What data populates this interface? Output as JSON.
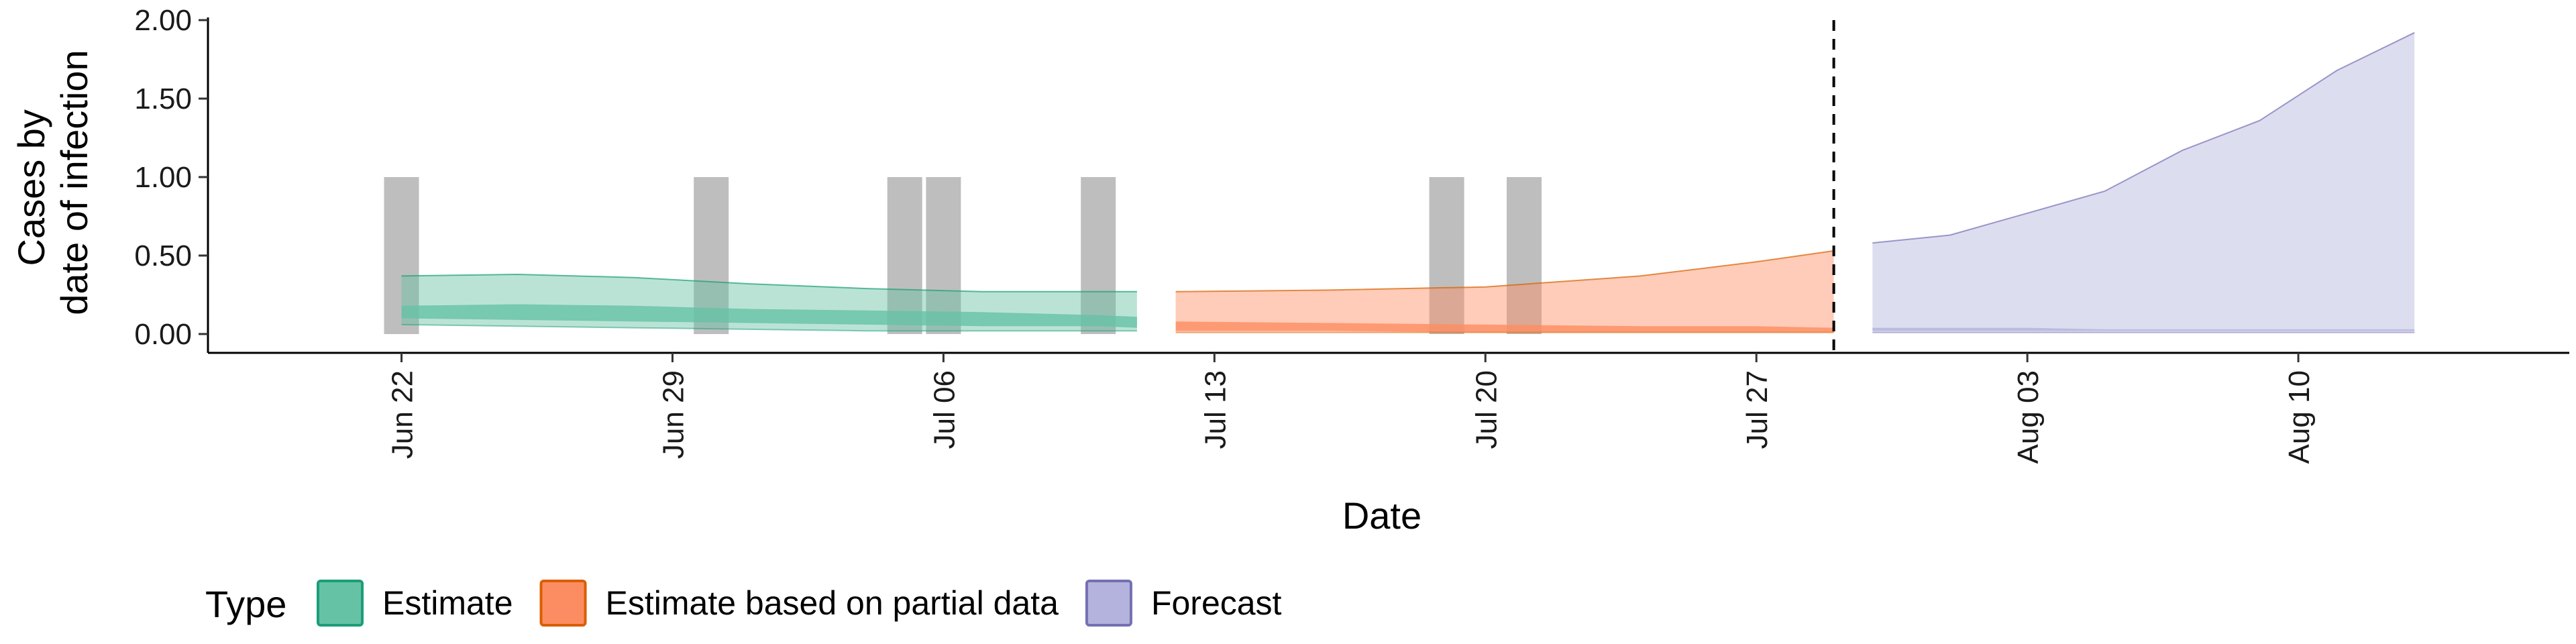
{
  "chart_data": {
    "type": "area",
    "xlabel": "Date",
    "ylabel_lines": [
      "Cases by",
      "date of infection"
    ],
    "ylim": [
      -0.12,
      2.0
    ],
    "yticks": [
      0,
      0.5,
      1,
      1.5,
      2
    ],
    "ytick_labels": [
      "0.00",
      "0.50",
      "1.00",
      "1.50",
      "2.00"
    ],
    "xlim": [
      "2020-06-17",
      "2020-08-17"
    ],
    "xticks": [
      "2020-06-22",
      "2020-06-29",
      "2020-07-06",
      "2020-07-13",
      "2020-07-20",
      "2020-07-27",
      "2020-08-03",
      "2020-08-10"
    ],
    "xtick_labels": [
      "Jun 22",
      "Jun 29",
      "Jul 06",
      "Jul 13",
      "Jul 20",
      "Jul 27",
      "Aug 03",
      "Aug 10"
    ],
    "vline_date": "2020-07-29",
    "observed_case_bars": {
      "dates": [
        "2020-06-22",
        "2020-06-30",
        "2020-07-05",
        "2020-07-06",
        "2020-07-10",
        "2020-07-19",
        "2020-07-21"
      ],
      "values": [
        1,
        1,
        1,
        1,
        1,
        1,
        1
      ],
      "color": "#bebebe"
    },
    "series": [
      {
        "name": "Estimate",
        "fill_color": "#66c2a5",
        "line_color": "#1b9e77",
        "dates": [
          "2020-06-22",
          "2020-06-25",
          "2020-06-28",
          "2020-07-01",
          "2020-07-04",
          "2020-07-07",
          "2020-07-10",
          "2020-07-11"
        ],
        "outer_lower": [
          0.06,
          0.05,
          0.04,
          0.03,
          0.02,
          0.02,
          0.02,
          0.02
        ],
        "outer_upper": [
          0.37,
          0.38,
          0.36,
          0.32,
          0.29,
          0.27,
          0.27,
          0.27
        ],
        "inner_lower": [
          0.1,
          0.09,
          0.08,
          0.07,
          0.06,
          0.05,
          0.05,
          0.04
        ],
        "inner_upper": [
          0.18,
          0.19,
          0.18,
          0.16,
          0.15,
          0.14,
          0.12,
          0.11
        ]
      },
      {
        "name": "Estimate based on partial data",
        "fill_color": "#fc8d62",
        "line_color": "#d95f02",
        "dates": [
          "2020-07-12",
          "2020-07-16",
          "2020-07-20",
          "2020-07-24",
          "2020-07-27",
          "2020-07-29"
        ],
        "outer_lower": [
          0.01,
          0.01,
          0.01,
          0.01,
          0.01,
          0.01
        ],
        "outer_upper": [
          0.27,
          0.28,
          0.3,
          0.37,
          0.46,
          0.53
        ],
        "inner_lower": [
          0.02,
          0.02,
          0.01,
          0.01,
          0.01,
          0.01
        ],
        "inner_upper": [
          0.08,
          0.07,
          0.06,
          0.05,
          0.05,
          0.04
        ]
      },
      {
        "name": "Forecast",
        "fill_color": "#b3b3dd",
        "line_color": "#7570b3",
        "dates": [
          "2020-07-30",
          "2020-08-01",
          "2020-08-03",
          "2020-08-05",
          "2020-08-07",
          "2020-08-09",
          "2020-08-11",
          "2020-08-13"
        ],
        "outer_lower": [
          0.01,
          0.01,
          0.01,
          0.01,
          0.01,
          0.01,
          0.01,
          0.01
        ],
        "outer_upper": [
          0.58,
          0.63,
          0.77,
          0.91,
          1.17,
          1.36,
          1.68,
          1.92
        ],
        "inner_lower": [
          0.02,
          0.02,
          0.02,
          0.02,
          0.02,
          0.02,
          0.02,
          0.02
        ],
        "inner_upper": [
          0.04,
          0.04,
          0.04,
          0.03,
          0.03,
          0.03,
          0.03,
          0.03
        ]
      }
    ],
    "legend": {
      "title": "Type",
      "position": "bottom-left",
      "items": [
        "Estimate",
        "Estimate based on partial data",
        "Forecast"
      ]
    }
  }
}
